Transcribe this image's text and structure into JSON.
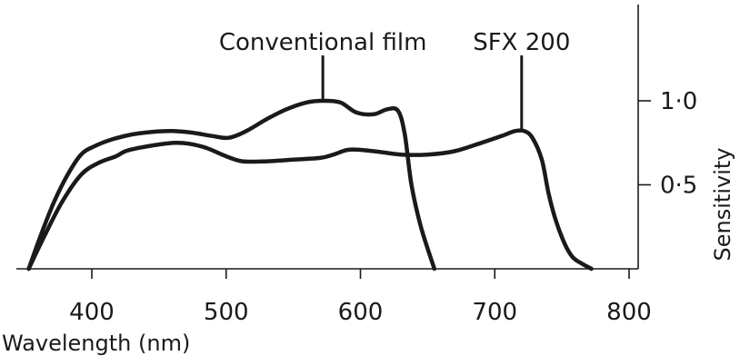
{
  "chart_data": {
    "type": "line",
    "xlabel": "Wavelength (nm)",
    "ylabel": "Sensitivity",
    "xlim": [
      350,
      800
    ],
    "ylim": [
      0,
      1.2
    ],
    "x_ticks": [
      {
        "value": 400,
        "label": "400"
      },
      {
        "value": 500,
        "label": "500"
      },
      {
        "value": 600,
        "label": "600"
      },
      {
        "value": 700,
        "label": "700"
      },
      {
        "value": 800,
        "label": "800"
      }
    ],
    "y_ticks": [
      {
        "value": 0.5,
        "label": "0·5"
      },
      {
        "value": 1.0,
        "label": "1·0"
      }
    ],
    "grid": false,
    "series": [
      {
        "name": "Conventional film",
        "x": [
          353,
          362,
          372,
          382,
          392,
          402,
          415,
          430,
          445,
          460,
          475,
          490,
          502,
          515,
          530,
          545,
          560,
          572,
          585,
          597,
          610,
          620,
          628,
          633,
          638,
          645,
          655
        ],
        "y": [
          0.0,
          0.2,
          0.4,
          0.56,
          0.68,
          0.73,
          0.77,
          0.8,
          0.815,
          0.82,
          0.81,
          0.79,
          0.78,
          0.82,
          0.89,
          0.95,
          0.99,
          1.0,
          0.99,
          0.93,
          0.92,
          0.95,
          0.94,
          0.8,
          0.5,
          0.25,
          0.0
        ]
      },
      {
        "name": "SFX 200",
        "x": [
          353,
          365,
          378,
          392,
          405,
          418,
          425,
          435,
          450,
          462,
          472,
          485,
          500,
          512,
          530,
          550,
          570,
          580,
          592,
          610,
          630,
          650,
          670,
          690,
          705,
          715,
          722,
          728,
          735,
          740,
          745,
          752,
          758,
          765,
          772
        ],
        "y": [
          0.0,
          0.2,
          0.4,
          0.56,
          0.63,
          0.67,
          0.7,
          0.72,
          0.74,
          0.75,
          0.745,
          0.72,
          0.67,
          0.64,
          0.64,
          0.65,
          0.66,
          0.68,
          0.71,
          0.7,
          0.68,
          0.68,
          0.7,
          0.75,
          0.79,
          0.82,
          0.82,
          0.78,
          0.65,
          0.45,
          0.3,
          0.15,
          0.07,
          0.03,
          0.0
        ]
      }
    ],
    "annotations": [
      {
        "text": "Conventional film",
        "series": 0,
        "x": 572,
        "y": 1.0
      },
      {
        "text": "SFX 200",
        "series": 1,
        "x": 720,
        "y": 0.82
      }
    ],
    "colors": {
      "ink": "#1a1a1a",
      "background": "#ffffff"
    }
  }
}
